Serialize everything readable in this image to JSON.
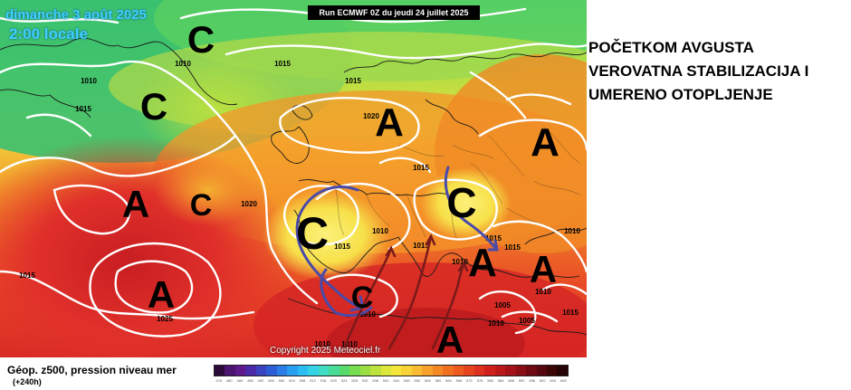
{
  "map": {
    "run_title": "Run ECMWF 0Z du jeudi 24 juillet 2025",
    "valid_date": "dimanche 3 août 2025",
    "valid_time": "2:00 locale",
    "copyright": "Copyright 2025 Meteociel.fr",
    "field_title": "Géop. z500, pression niveau mer",
    "forecast_step": "(+240h)",
    "pressure_centers": [
      {
        "letter": "C",
        "type": "low"
      },
      {
        "letter": "C",
        "type": "low"
      },
      {
        "letter": "A",
        "type": "high"
      },
      {
        "letter": "C",
        "type": "low"
      },
      {
        "letter": "A",
        "type": "high"
      },
      {
        "letter": "A",
        "type": "high"
      },
      {
        "letter": "A",
        "type": "high"
      },
      {
        "letter": "C",
        "type": "low"
      },
      {
        "letter": "C",
        "type": "low"
      },
      {
        "letter": "A",
        "type": "high"
      },
      {
        "letter": "A",
        "type": "high"
      },
      {
        "letter": "C",
        "type": "low"
      },
      {
        "letter": "A",
        "type": "high"
      }
    ],
    "isobar_labels": [
      "1010",
      "1010",
      "1015",
      "1015",
      "1015",
      "1020",
      "1015",
      "1020",
      "1015",
      "1025",
      "1010",
      "1015",
      "1015",
      "1015",
      "1015",
      "1010",
      "1010",
      "1005",
      "1005",
      "1010",
      "1015",
      "1010",
      "1010",
      "1010",
      "1010"
    ],
    "colors": {
      "low_green": "#3ccf6a",
      "mid_yellow": "#f7e14a",
      "orange": "#f59a2a",
      "high_red": "#e0302a",
      "deep_red": "#a8121a",
      "isobar": "#ffffff",
      "trough_arrow": "#4a4aa8",
      "ridge_arrow": "#7a1a1a"
    }
  },
  "headline": {
    "lines": [
      "POČETKOM AVGUSTA",
      "VEROVATNA STABILIZACIJA I",
      "UMERENO OTOPLJENJE"
    ]
  },
  "legend": {
    "colors": [
      "#2b0a3a",
      "#4a1470",
      "#5e1a8c",
      "#4a2aa8",
      "#3a44c0",
      "#2e5ed6",
      "#2a7ee6",
      "#2a9ef0",
      "#2abdf4",
      "#34d4e6",
      "#40dcc4",
      "#48dc98",
      "#56da6c",
      "#76dc50",
      "#9ade44",
      "#bce23c",
      "#dde63a",
      "#f4e63a",
      "#f8d236",
      "#f8bc32",
      "#f6a22c",
      "#f48a26",
      "#f07020",
      "#ec5a1e",
      "#e6441e",
      "#de301e",
      "#d0201c",
      "#bc181a",
      "#a41218",
      "#8a0e16",
      "#700a12",
      "#560810",
      "#3a0606",
      "#240404"
    ],
    "labels": [
      "476",
      "480",
      "484",
      "488",
      "492",
      "496",
      "500",
      "504",
      "508",
      "512",
      "516",
      "520",
      "524",
      "528",
      "532",
      "536",
      "540",
      "544",
      "548",
      "552",
      "556",
      "560",
      "564",
      "568",
      "572",
      "576",
      "580",
      "584",
      "588",
      "592",
      "596",
      "600",
      "604",
      "608"
    ]
  }
}
